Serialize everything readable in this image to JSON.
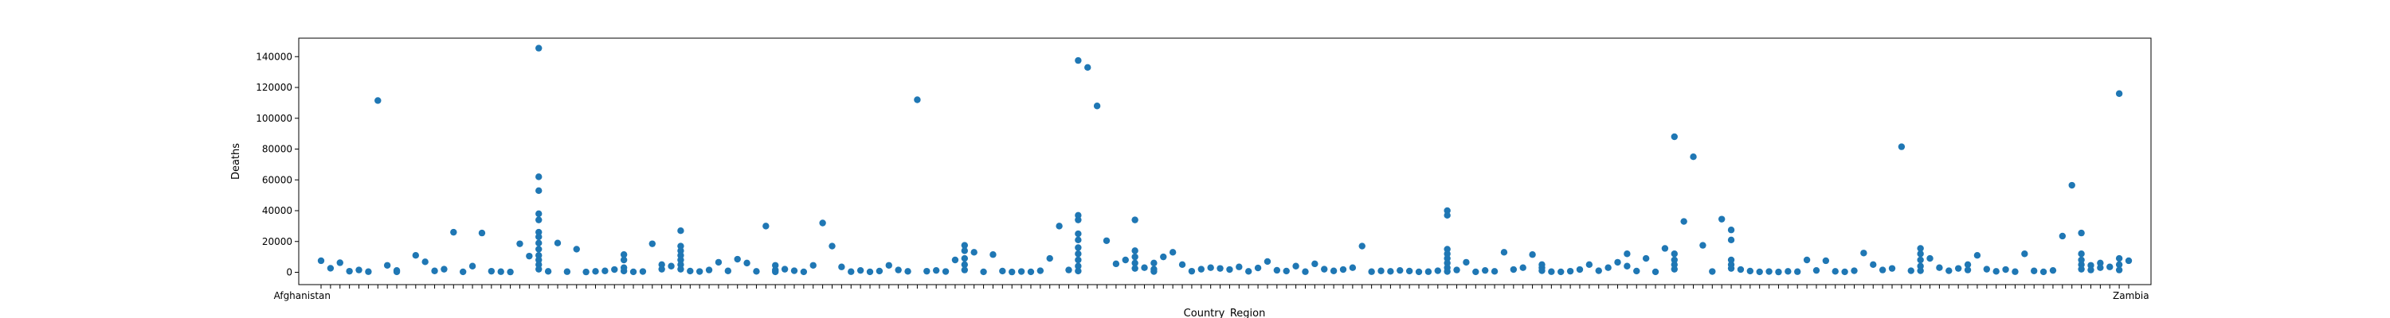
{
  "chart_data": {
    "type": "scatter",
    "xlabel": "Country_Region",
    "ylabel": "Deaths",
    "ylim": [
      -8000,
      152000
    ],
    "yticks": [
      0,
      20000,
      40000,
      60000,
      80000,
      100000,
      120000,
      140000
    ],
    "ytick_labels": [
      "0",
      "20000",
      "40000",
      "60000",
      "80000",
      "100000",
      "120000",
      "140000"
    ],
    "x_tick_labels_visible": [
      "Afghanistan",
      "Zambia"
    ],
    "categories_count": 192,
    "grid": false,
    "legend": "none",
    "marker_color": "#1f77b4",
    "points": [
      {
        "x": 0,
        "y": 7500
      },
      {
        "x": 1,
        "y": 2600
      },
      {
        "x": 2,
        "y": 6200
      },
      {
        "x": 3,
        "y": 700
      },
      {
        "x": 4,
        "y": 1500
      },
      {
        "x": 5,
        "y": 400
      },
      {
        "x": 6,
        "y": 111500
      },
      {
        "x": 7,
        "y": 4500
      },
      {
        "x": 8,
        "y": 1200
      },
      {
        "x": 8,
        "y": 300
      },
      {
        "x": 10,
        "y": 11000
      },
      {
        "x": 11,
        "y": 6800
      },
      {
        "x": 12,
        "y": 900
      },
      {
        "x": 13,
        "y": 2000
      },
      {
        "x": 14,
        "y": 26000
      },
      {
        "x": 15,
        "y": 300
      },
      {
        "x": 16,
        "y": 4000
      },
      {
        "x": 17,
        "y": 25500
      },
      {
        "x": 18,
        "y": 700
      },
      {
        "x": 19,
        "y": 400
      },
      {
        "x": 20,
        "y": 200
      },
      {
        "x": 21,
        "y": 18500
      },
      {
        "x": 22,
        "y": 10500
      },
      {
        "x": 23,
        "y": 145500
      },
      {
        "x": 23,
        "y": 62000
      },
      {
        "x": 23,
        "y": 53000
      },
      {
        "x": 23,
        "y": 38000
      },
      {
        "x": 23,
        "y": 34000
      },
      {
        "x": 23,
        "y": 26000
      },
      {
        "x": 23,
        "y": 23000
      },
      {
        "x": 23,
        "y": 19000
      },
      {
        "x": 23,
        "y": 15000
      },
      {
        "x": 23,
        "y": 11000
      },
      {
        "x": 23,
        "y": 8000
      },
      {
        "x": 23,
        "y": 5000
      },
      {
        "x": 23,
        "y": 2000
      },
      {
        "x": 24,
        "y": 600
      },
      {
        "x": 25,
        "y": 19000
      },
      {
        "x": 26,
        "y": 400
      },
      {
        "x": 27,
        "y": 15000
      },
      {
        "x": 28,
        "y": 200
      },
      {
        "x": 29,
        "y": 600
      },
      {
        "x": 30,
        "y": 900
      },
      {
        "x": 31,
        "y": 1800
      },
      {
        "x": 32,
        "y": 11500
      },
      {
        "x": 32,
        "y": 8000
      },
      {
        "x": 32,
        "y": 3000
      },
      {
        "x": 32,
        "y": 800
      },
      {
        "x": 33,
        "y": 300
      },
      {
        "x": 34,
        "y": 500
      },
      {
        "x": 35,
        "y": 18500
      },
      {
        "x": 36,
        "y": 5000
      },
      {
        "x": 36,
        "y": 2000
      },
      {
        "x": 37,
        "y": 4000
      },
      {
        "x": 38,
        "y": 27000
      },
      {
        "x": 38,
        "y": 17000
      },
      {
        "x": 38,
        "y": 14000
      },
      {
        "x": 38,
        "y": 11000
      },
      {
        "x": 38,
        "y": 8000
      },
      {
        "x": 38,
        "y": 5000
      },
      {
        "x": 38,
        "y": 2000
      },
      {
        "x": 39,
        "y": 800
      },
      {
        "x": 40,
        "y": 500
      },
      {
        "x": 41,
        "y": 1500
      },
      {
        "x": 42,
        "y": 6500
      },
      {
        "x": 43,
        "y": 900
      },
      {
        "x": 44,
        "y": 8500
      },
      {
        "x": 45,
        "y": 6000
      },
      {
        "x": 46,
        "y": 600
      },
      {
        "x": 47,
        "y": 30000
      },
      {
        "x": 48,
        "y": 4500
      },
      {
        "x": 48,
        "y": 1500
      },
      {
        "x": 48,
        "y": 300
      },
      {
        "x": 49,
        "y": 2000
      },
      {
        "x": 50,
        "y": 1000
      },
      {
        "x": 51,
        "y": 300
      },
      {
        "x": 52,
        "y": 4500
      },
      {
        "x": 53,
        "y": 32000
      },
      {
        "x": 54,
        "y": 17000
      },
      {
        "x": 55,
        "y": 3500
      },
      {
        "x": 56,
        "y": 400
      },
      {
        "x": 57,
        "y": 1200
      },
      {
        "x": 58,
        "y": 300
      },
      {
        "x": 59,
        "y": 800
      },
      {
        "x": 60,
        "y": 4500
      },
      {
        "x": 61,
        "y": 1500
      },
      {
        "x": 62,
        "y": 600
      },
      {
        "x": 63,
        "y": 112000
      },
      {
        "x": 64,
        "y": 700
      },
      {
        "x": 65,
        "y": 1200
      },
      {
        "x": 66,
        "y": 500
      },
      {
        "x": 67,
        "y": 8000
      },
      {
        "x": 68,
        "y": 17500
      },
      {
        "x": 68,
        "y": 14000
      },
      {
        "x": 68,
        "y": 9000
      },
      {
        "x": 68,
        "y": 5000
      },
      {
        "x": 68,
        "y": 1500
      },
      {
        "x": 69,
        "y": 13000
      },
      {
        "x": 70,
        "y": 300
      },
      {
        "x": 71,
        "y": 11500
      },
      {
        "x": 72,
        "y": 800
      },
      {
        "x": 73,
        "y": 200
      },
      {
        "x": 74,
        "y": 500
      },
      {
        "x": 75,
        "y": 300
      },
      {
        "x": 76,
        "y": 1000
      },
      {
        "x": 77,
        "y": 9000
      },
      {
        "x": 78,
        "y": 30000
      },
      {
        "x": 79,
        "y": 1500
      },
      {
        "x": 80,
        "y": 137500
      },
      {
        "x": 80,
        "y": 37000
      },
      {
        "x": 80,
        "y": 34000
      },
      {
        "x": 80,
        "y": 25000
      },
      {
        "x": 80,
        "y": 21000
      },
      {
        "x": 80,
        "y": 16000
      },
      {
        "x": 80,
        "y": 12000
      },
      {
        "x": 80,
        "y": 8000
      },
      {
        "x": 80,
        "y": 4000
      },
      {
        "x": 80,
        "y": 800
      },
      {
        "x": 81,
        "y": 133000
      },
      {
        "x": 82,
        "y": 108000
      },
      {
        "x": 83,
        "y": 20500
      },
      {
        "x": 84,
        "y": 5500
      },
      {
        "x": 85,
        "y": 8000
      },
      {
        "x": 86,
        "y": 34000
      },
      {
        "x": 86,
        "y": 14000
      },
      {
        "x": 86,
        "y": 10000
      },
      {
        "x": 86,
        "y": 6000
      },
      {
        "x": 86,
        "y": 2500
      },
      {
        "x": 87,
        "y": 3000
      },
      {
        "x": 88,
        "y": 6000
      },
      {
        "x": 88,
        "y": 2000
      },
      {
        "x": 88,
        "y": 500
      },
      {
        "x": 89,
        "y": 10000
      },
      {
        "x": 90,
        "y": 13000
      },
      {
        "x": 91,
        "y": 5000
      },
      {
        "x": 92,
        "y": 700
      },
      {
        "x": 93,
        "y": 2000
      },
      {
        "x": 94,
        "y": 3000
      },
      {
        "x": 95,
        "y": 2500
      },
      {
        "x": 96,
        "y": 1800
      },
      {
        "x": 97,
        "y": 3500
      },
      {
        "x": 98,
        "y": 600
      },
      {
        "x": 99,
        "y": 2800
      },
      {
        "x": 100,
        "y": 7000
      },
      {
        "x": 101,
        "y": 1300
      },
      {
        "x": 102,
        "y": 800
      },
      {
        "x": 103,
        "y": 4000
      },
      {
        "x": 104,
        "y": 400
      },
      {
        "x": 105,
        "y": 5500
      },
      {
        "x": 106,
        "y": 2000
      },
      {
        "x": 107,
        "y": 900
      },
      {
        "x": 108,
        "y": 1800
      },
      {
        "x": 109,
        "y": 3000
      },
      {
        "x": 110,
        "y": 17000
      },
      {
        "x": 111,
        "y": 400
      },
      {
        "x": 112,
        "y": 900
      },
      {
        "x": 113,
        "y": 600
      },
      {
        "x": 114,
        "y": 1200
      },
      {
        "x": 115,
        "y": 800
      },
      {
        "x": 116,
        "y": 300
      },
      {
        "x": 117,
        "y": 400
      },
      {
        "x": 118,
        "y": 1000
      },
      {
        "x": 119,
        "y": 40000
      },
      {
        "x": 119,
        "y": 37000
      },
      {
        "x": 119,
        "y": 15000
      },
      {
        "x": 119,
        "y": 12000
      },
      {
        "x": 119,
        "y": 9000
      },
      {
        "x": 119,
        "y": 6000
      },
      {
        "x": 119,
        "y": 3000
      },
      {
        "x": 119,
        "y": 500
      },
      {
        "x": 120,
        "y": 1500
      },
      {
        "x": 121,
        "y": 6500
      },
      {
        "x": 122,
        "y": 300
      },
      {
        "x": 123,
        "y": 1200
      },
      {
        "x": 124,
        "y": 600
      },
      {
        "x": 125,
        "y": 13000
      },
      {
        "x": 126,
        "y": 1800
      },
      {
        "x": 127,
        "y": 3000
      },
      {
        "x": 128,
        "y": 11500
      },
      {
        "x": 129,
        "y": 5000
      },
      {
        "x": 129,
        "y": 3000
      },
      {
        "x": 129,
        "y": 1000
      },
      {
        "x": 130,
        "y": 400
      },
      {
        "x": 131,
        "y": 300
      },
      {
        "x": 132,
        "y": 700
      },
      {
        "x": 133,
        "y": 1800
      },
      {
        "x": 134,
        "y": 5000
      },
      {
        "x": 135,
        "y": 1000
      },
      {
        "x": 136,
        "y": 3000
      },
      {
        "x": 137,
        "y": 6500
      },
      {
        "x": 138,
        "y": 12000
      },
      {
        "x": 138,
        "y": 4000
      },
      {
        "x": 139,
        "y": 800
      },
      {
        "x": 140,
        "y": 9000
      },
      {
        "x": 141,
        "y": 300
      },
      {
        "x": 142,
        "y": 15500
      },
      {
        "x": 143,
        "y": 88000
      },
      {
        "x": 143,
        "y": 12000
      },
      {
        "x": 143,
        "y": 8000
      },
      {
        "x": 143,
        "y": 5000
      },
      {
        "x": 143,
        "y": 2000
      },
      {
        "x": 144,
        "y": 33000
      },
      {
        "x": 145,
        "y": 75000
      },
      {
        "x": 146,
        "y": 17500
      },
      {
        "x": 147,
        "y": 500
      },
      {
        "x": 148,
        "y": 34500
      },
      {
        "x": 149,
        "y": 27500
      },
      {
        "x": 149,
        "y": 21000
      },
      {
        "x": 149,
        "y": 8000
      },
      {
        "x": 149,
        "y": 5000
      },
      {
        "x": 149,
        "y": 2500
      },
      {
        "x": 150,
        "y": 1800
      },
      {
        "x": 151,
        "y": 800
      },
      {
        "x": 152,
        "y": 300
      },
      {
        "x": 153,
        "y": 500
      },
      {
        "x": 154,
        "y": 200
      },
      {
        "x": 155,
        "y": 600
      },
      {
        "x": 156,
        "y": 400
      },
      {
        "x": 157,
        "y": 8000
      },
      {
        "x": 158,
        "y": 1200
      },
      {
        "x": 159,
        "y": 7500
      },
      {
        "x": 160,
        "y": 600
      },
      {
        "x": 161,
        "y": 300
      },
      {
        "x": 162,
        "y": 1000
      },
      {
        "x": 163,
        "y": 12500
      },
      {
        "x": 164,
        "y": 5000
      },
      {
        "x": 165,
        "y": 1500
      },
      {
        "x": 166,
        "y": 2500
      },
      {
        "x": 167,
        "y": 81500
      },
      {
        "x": 168,
        "y": 1000
      },
      {
        "x": 169,
        "y": 15500
      },
      {
        "x": 169,
        "y": 12000
      },
      {
        "x": 169,
        "y": 8000
      },
      {
        "x": 169,
        "y": 4000
      },
      {
        "x": 169,
        "y": 1000
      },
      {
        "x": 170,
        "y": 9000
      },
      {
        "x": 171,
        "y": 3000
      },
      {
        "x": 172,
        "y": 1000
      },
      {
        "x": 173,
        "y": 2500
      },
      {
        "x": 174,
        "y": 5000
      },
      {
        "x": 174,
        "y": 1500
      },
      {
        "x": 175,
        "y": 11000
      },
      {
        "x": 176,
        "y": 2000
      },
      {
        "x": 177,
        "y": 600
      },
      {
        "x": 178,
        "y": 1800
      },
      {
        "x": 179,
        "y": 400
      },
      {
        "x": 180,
        "y": 12000
      },
      {
        "x": 181,
        "y": 900
      },
      {
        "x": 182,
        "y": 300
      },
      {
        "x": 183,
        "y": 1200
      },
      {
        "x": 184,
        "y": 23500
      },
      {
        "x": 185,
        "y": 56500
      },
      {
        "x": 186,
        "y": 25500
      },
      {
        "x": 186,
        "y": 12000
      },
      {
        "x": 186,
        "y": 8000
      },
      {
        "x": 186,
        "y": 5000
      },
      {
        "x": 186,
        "y": 2000
      },
      {
        "x": 187,
        "y": 4500
      },
      {
        "x": 187,
        "y": 1500
      },
      {
        "x": 188,
        "y": 6000
      },
      {
        "x": 188,
        "y": 3000
      },
      {
        "x": 189,
        "y": 3500
      },
      {
        "x": 190,
        "y": 116000
      },
      {
        "x": 190,
        "y": 9000
      },
      {
        "x": 190,
        "y": 5000
      },
      {
        "x": 190,
        "y": 1500
      },
      {
        "x": 191,
        "y": 7500
      }
    ]
  }
}
